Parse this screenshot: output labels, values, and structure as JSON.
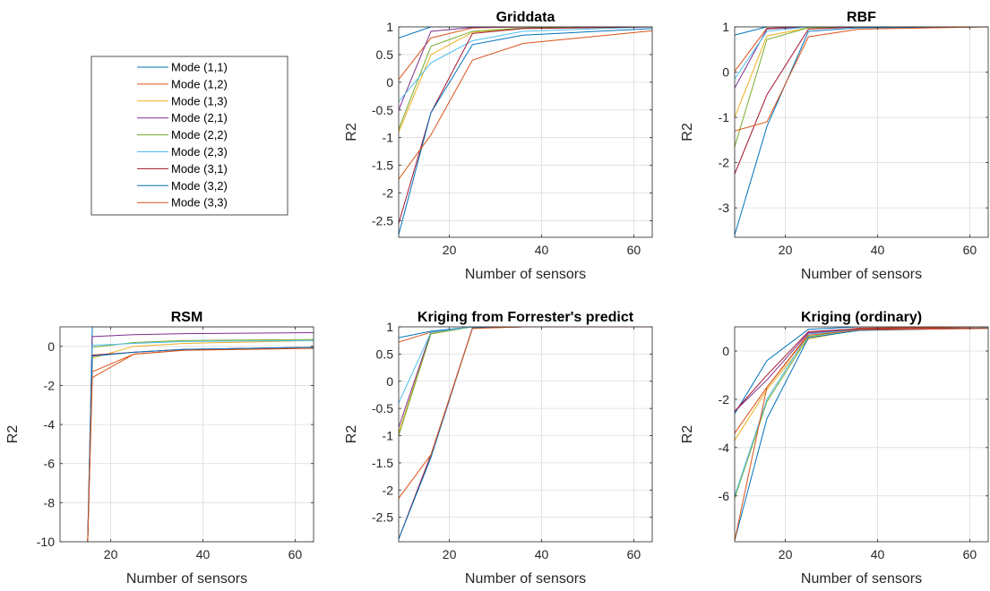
{
  "chart_data": [
    {
      "type": "line",
      "title": "Griddata",
      "xlabel": "Number of sensors",
      "ylabel": "R2",
      "xlim": [
        9,
        64
      ],
      "ylim": [
        -2.8,
        1
      ],
      "xticks": [
        20,
        40,
        60
      ],
      "yticks": [
        -2.5,
        -2,
        -1.5,
        -1,
        -0.5,
        0,
        0.5,
        1
      ],
      "ytick_labels": [
        "-2.5",
        "-2",
        "-1.5",
        "-1",
        "-0.5",
        "0",
        "0.5",
        "1"
      ],
      "grid": true,
      "x": [
        9,
        16,
        25,
        36,
        64
      ],
      "series": [
        {
          "name": "Mode (1,1)",
          "values": [
            0.8,
            1,
            1,
            1,
            1
          ]
        },
        {
          "name": "Mode (1,2)",
          "values": [
            0.05,
            0.8,
            0.98,
            1,
            1
          ]
        },
        {
          "name": "Mode (1,3)",
          "values": [
            -0.9,
            0.5,
            0.9,
            0.98,
            1
          ]
        },
        {
          "name": "Mode (2,1)",
          "values": [
            -0.5,
            0.92,
            0.99,
            1,
            1
          ]
        },
        {
          "name": "Mode (2,2)",
          "values": [
            -0.85,
            0.65,
            0.92,
            0.98,
            1
          ]
        },
        {
          "name": "Mode (2,3)",
          "values": [
            -0.35,
            0.35,
            0.75,
            0.92,
            1
          ]
        },
        {
          "name": "Mode (3,1)",
          "values": [
            -2.55,
            -0.55,
            0.88,
            0.97,
            1
          ]
        },
        {
          "name": "Mode (3,2)",
          "values": [
            -2.75,
            -0.55,
            0.68,
            0.85,
            0.97
          ]
        },
        {
          "name": "Mode (3,3)",
          "values": [
            -1.75,
            -0.95,
            0.4,
            0.7,
            0.93
          ]
        }
      ]
    },
    {
      "type": "line",
      "title": "RBF",
      "xlabel": "Number of sensors",
      "ylabel": "R2",
      "xlim": [
        9,
        64
      ],
      "ylim": [
        -3.65,
        1
      ],
      "xticks": [
        20,
        40,
        60
      ],
      "yticks": [
        -3,
        -2,
        -1,
        0,
        1
      ],
      "ytick_labels": [
        "-3",
        "-2",
        "-1",
        "0",
        "1"
      ],
      "grid": true,
      "x": [
        9,
        16,
        25,
        36,
        64
      ],
      "series": [
        {
          "name": "Mode (1,1)",
          "values": [
            0.82,
            1,
            1,
            1,
            1
          ]
        },
        {
          "name": "Mode (1,2)",
          "values": [
            0.02,
            0.97,
            1,
            1,
            1
          ]
        },
        {
          "name": "Mode (1,3)",
          "values": [
            -1,
            0.8,
            0.98,
            1,
            1
          ]
        },
        {
          "name": "Mode (2,1)",
          "values": [
            -0.35,
            0.95,
            1,
            1,
            1
          ]
        },
        {
          "name": "Mode (2,2)",
          "values": [
            -1.65,
            0.72,
            0.98,
            1,
            1
          ]
        },
        {
          "name": "Mode (2,3)",
          "values": [
            -0.15,
            0.9,
            1,
            1,
            1
          ]
        },
        {
          "name": "Mode (3,1)",
          "values": [
            -2.25,
            -0.5,
            0.95,
            1,
            1
          ]
        },
        {
          "name": "Mode (3,2)",
          "values": [
            -3.6,
            -1.2,
            0.9,
            0.98,
            1
          ]
        },
        {
          "name": "Mode (3,3)",
          "values": [
            -1.3,
            -1.1,
            0.78,
            0.95,
            1
          ]
        }
      ]
    },
    {
      "type": "line",
      "title": "RSM",
      "xlabel": "Number of sensors",
      "ylabel": "R2",
      "xlim": [
        9,
        64
      ],
      "ylim": [
        -10,
        1
      ],
      "xticks": [
        20,
        40,
        60
      ],
      "yticks": [
        -10,
        -8,
        -6,
        -4,
        -2,
        0
      ],
      "ytick_labels": [
        "-10",
        "-8",
        "-6",
        "-4",
        "-2",
        "0"
      ],
      "grid": true,
      "x": [
        15,
        16,
        25,
        36,
        64
      ],
      "series": [
        {
          "name": "Mode (1,1)",
          "values": [
            -10,
            1,
            1,
            1,
            1
          ]
        },
        {
          "name": "Mode (1,2)",
          "values": [
            -10,
            -1.3,
            -0.4,
            -0.2,
            -0.05
          ]
        },
        {
          "name": "Mode (1,3)",
          "values": [
            -10,
            -0.6,
            0,
            0.15,
            0.3
          ]
        },
        {
          "name": "Mode (2,1)",
          "values": [
            -10,
            0.5,
            0.6,
            0.65,
            0.7
          ]
        },
        {
          "name": "Mode (2,2)",
          "values": [
            -10,
            -0.05,
            0.2,
            0.3,
            0.35
          ]
        },
        {
          "name": "Mode (2,3)",
          "values": [
            -10,
            0.05,
            0.15,
            0.25,
            0.3
          ]
        },
        {
          "name": "Mode (3,1)",
          "values": [
            -10,
            -0.45,
            -0.3,
            -0.15,
            -0.05
          ]
        },
        {
          "name": "Mode (3,2)",
          "values": [
            -10,
            -0.5,
            -0.3,
            -0.15,
            -0.05
          ]
        },
        {
          "name": "Mode (3,3)",
          "values": [
            -10,
            -1.6,
            -0.4,
            -0.2,
            -0.1
          ]
        }
      ]
    },
    {
      "type": "line",
      "title": "Kriging from Forrester's predict",
      "xlabel": "Number of sensors",
      "ylabel": "R2",
      "xlim": [
        9,
        64
      ],
      "ylim": [
        -2.95,
        1
      ],
      "xticks": [
        20,
        40,
        60
      ],
      "yticks": [
        -2.5,
        -2,
        -1.5,
        -1,
        -0.5,
        0,
        0.5,
        1
      ],
      "ytick_labels": [
        "-2.5",
        "-2",
        "-1.5",
        "-1",
        "-0.5",
        "0",
        "0.5",
        "1"
      ],
      "grid": true,
      "x": [
        9,
        16,
        25,
        36,
        64
      ],
      "series": [
        {
          "name": "Mode (1,1)",
          "values": [
            0.8,
            0.92,
            1,
            1,
            1
          ]
        },
        {
          "name": "Mode (1,2)",
          "values": [
            0.72,
            0.9,
            1,
            1,
            1
          ]
        },
        {
          "name": "Mode (1,3)",
          "values": [
            -0.95,
            0.88,
            1,
            1,
            1
          ]
        },
        {
          "name": "Mode (2,1)",
          "values": [
            -0.85,
            0.9,
            1,
            1,
            1
          ]
        },
        {
          "name": "Mode (2,2)",
          "values": [
            -1,
            0.87,
            1,
            1,
            1
          ]
        },
        {
          "name": "Mode (2,3)",
          "values": [
            -0.4,
            0.9,
            1,
            1,
            1
          ]
        },
        {
          "name": "Mode (3,1)",
          "values": [
            -2.9,
            -1.35,
            0.98,
            1,
            1
          ]
        },
        {
          "name": "Mode (3,2)",
          "values": [
            -2.9,
            -1.4,
            0.98,
            1,
            1
          ]
        },
        {
          "name": "Mode (3,3)",
          "values": [
            -2.15,
            -1.35,
            0.97,
            1,
            1
          ]
        }
      ]
    },
    {
      "type": "line",
      "title": "Kriging (ordinary)",
      "xlabel": "Number of sensors",
      "ylabel": "R2",
      "xlim": [
        9,
        64
      ],
      "ylim": [
        -7.9,
        1
      ],
      "xticks": [
        20,
        40,
        60
      ],
      "yticks": [
        -6,
        -4,
        -2,
        0
      ],
      "ytick_labels": [
        "-6",
        "-4",
        "-2",
        "0"
      ],
      "grid": true,
      "x": [
        9,
        16,
        25,
        36,
        64
      ],
      "series": [
        {
          "name": "Mode (1,1)",
          "values": [
            -2.6,
            -0.4,
            0.9,
            1,
            1
          ]
        },
        {
          "name": "Mode (1,2)",
          "values": [
            -3.4,
            -1.5,
            0.7,
            0.95,
            1
          ]
        },
        {
          "name": "Mode (1,3)",
          "values": [
            -3.7,
            -1.6,
            0.5,
            0.9,
            0.95
          ]
        },
        {
          "name": "Mode (2,1)",
          "values": [
            -2.5,
            -1.2,
            0.75,
            0.9,
            0.95
          ]
        },
        {
          "name": "Mode (2,2)",
          "values": [
            -6.1,
            -2.1,
            0.6,
            0.9,
            0.95
          ]
        },
        {
          "name": "Mode (2,3)",
          "values": [
            -6.0,
            -2.0,
            0.7,
            0.9,
            0.95
          ]
        },
        {
          "name": "Mode (3,1)",
          "values": [
            -2.5,
            -1.0,
            0.8,
            0.92,
            0.95
          ]
        },
        {
          "name": "Mode (3,2)",
          "values": [
            -7.85,
            -2.8,
            0.55,
            0.85,
            0.95
          ]
        },
        {
          "name": "Mode (3,3)",
          "values": [
            -7.85,
            -1.5,
            0.65,
            0.88,
            0.93
          ]
        }
      ]
    }
  ],
  "legend": {
    "entries": [
      "Mode (1,1)",
      "Mode (1,2)",
      "Mode (1,3)",
      "Mode (2,1)",
      "Mode (2,2)",
      "Mode (2,3)",
      "Mode (3,1)",
      "Mode (3,2)",
      "Mode (3,3)"
    ],
    "colors": [
      "#0072BD",
      "#D95319",
      "#EDB120",
      "#7E2F8E",
      "#77AC30",
      "#4DBEEE",
      "#A2142F",
      "#0072BD",
      "#D95319"
    ]
  }
}
